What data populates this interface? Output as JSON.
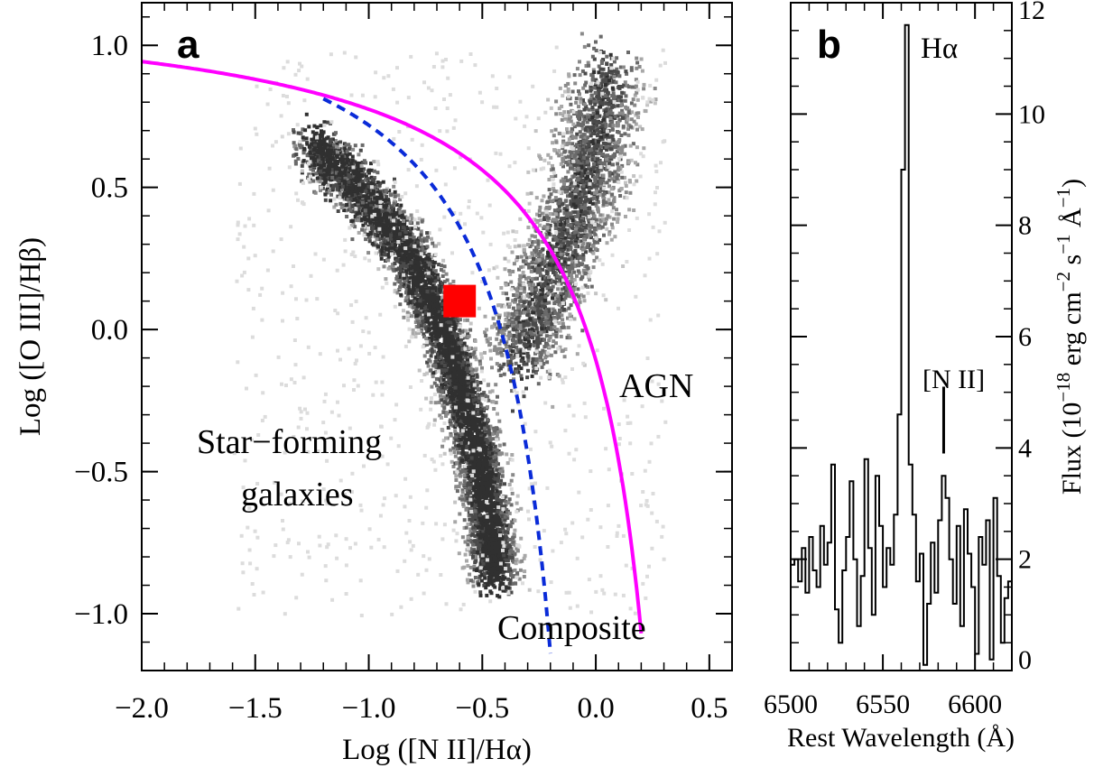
{
  "colors": {
    "kewley_curve": "#ff00ff",
    "kauffmann_curve": "#0a2bd8",
    "target_marker": "#ff0000",
    "density_light": "#cfcfcf",
    "density_dark": "#2a2a2a",
    "axis": "#000000"
  },
  "chart_data": [
    {
      "type": "scatter",
      "panel_label": "a",
      "xlabel": "Log ([N II]/Hα)",
      "ylabel": "Log ([O III]/Hβ)",
      "xlim": [
        -2.0,
        0.6
      ],
      "ylim": [
        -1.2,
        1.15
      ],
      "xticks": [
        -2.0,
        -1.5,
        -1.0,
        -0.5,
        0.0,
        0.5
      ],
      "xtick_labels": [
        "−2.0",
        "−1.5",
        "−1.0",
        "−0.5",
        "0.0",
        "0.5"
      ],
      "yticks": [
        -1.0,
        -0.5,
        0.0,
        0.5,
        1.0
      ],
      "ytick_labels": [
        "−1.0",
        "−0.5",
        "0.0",
        "0.5",
        "1.0"
      ],
      "annotations": [
        "AGN",
        "Star−forming",
        "galaxies",
        "Composite"
      ],
      "curves": [
        {
          "style": "solid",
          "color": "#ff00ff",
          "x_range": [
            -2.0,
            0.2
          ],
          "formula": "y = 0.61/(x - 0.47) + 1.19"
        },
        {
          "style": "dashed",
          "color": "#0a2bd8",
          "x_range": [
            -1.2,
            -0.2
          ],
          "formula": "y = 0.61/(x - 0.05) + 1.3"
        }
      ],
      "marker": {
        "x": -0.6,
        "y": 0.1,
        "shape": "square",
        "color": "#ff0000"
      },
      "density_components": [
        {
          "name": "star-forming branch",
          "points": [
            [
              -1.25,
              0.65
            ],
            [
              -1.05,
              0.5
            ],
            [
              -0.85,
              0.3
            ],
            [
              -0.7,
              0.05
            ],
            [
              -0.6,
              -0.2
            ],
            [
              -0.52,
              -0.45
            ],
            [
              -0.47,
              -0.7
            ],
            [
              -0.45,
              -0.85
            ]
          ]
        },
        {
          "name": "AGN branch",
          "points": [
            [
              -0.35,
              -0.1
            ],
            [
              -0.25,
              0.1
            ],
            [
              -0.15,
              0.3
            ],
            [
              -0.05,
              0.5
            ],
            [
              0.0,
              0.7
            ],
            [
              0.05,
              0.9
            ]
          ]
        }
      ]
    },
    {
      "type": "line",
      "panel_label": "b",
      "xlabel": "Rest Wavelength (Å)",
      "ylabel_text": "Flux (10",
      "ylabel_exp1": "−18",
      "ylabel_mid": " erg cm",
      "ylabel_exp2": "−2",
      "ylabel_mid2": " s",
      "ylabel_exp3": "−1",
      "ylabel_end": " Å",
      "ylabel_exp4": "−1",
      "ylabel_close": ")",
      "xlim": [
        6500,
        6620
      ],
      "ylim": [
        0,
        12
      ],
      "xticks": [
        6500,
        6550,
        6600
      ],
      "xtick_labels": [
        "6500",
        "6550",
        "6600"
      ],
      "yticks": [
        0,
        2,
        4,
        6,
        8,
        10,
        12
      ],
      "ytick_labels": [
        "0",
        "2",
        "4",
        "6",
        "8",
        "10",
        "12"
      ],
      "annotations": [
        "Hα",
        "[N II]"
      ],
      "nii_marker": {
        "x": 6583,
        "y_from": 3.9,
        "y_to": 5.1
      },
      "x": [
        6500,
        6502,
        6504,
        6506,
        6508,
        6510,
        6512,
        6514,
        6516,
        6518,
        6520,
        6522,
        6524,
        6526,
        6528,
        6530,
        6532,
        6534,
        6536,
        6538,
        6540,
        6542,
        6544,
        6546,
        6548,
        6550,
        6552,
        6554,
        6556,
        6558,
        6560,
        6562,
        6564,
        6566,
        6568,
        6570,
        6572,
        6574,
        6576,
        6578,
        6580,
        6582,
        6584,
        6586,
        6588,
        6590,
        6592,
        6594,
        6596,
        6598,
        6600,
        6602,
        6604,
        6606,
        6608,
        6610,
        6612,
        6614,
        6616,
        6618
      ],
      "y": [
        1.9,
        2.0,
        1.6,
        2.2,
        1.4,
        2.4,
        1.8,
        1.5,
        2.6,
        1.9,
        2.3,
        3.7,
        1.1,
        0.5,
        1.8,
        2.4,
        3.4,
        2.0,
        0.8,
        1.7,
        3.8,
        2.2,
        1.0,
        3.5,
        2.6,
        1.5,
        2.2,
        1.9,
        2.8,
        4.6,
        9.0,
        11.6,
        3.7,
        2.8,
        1.6,
        2.1,
        0.1,
        1.2,
        2.3,
        1.4,
        2.7,
        3.5,
        3.1,
        2.0,
        1.2,
        2.6,
        0.8,
        2.9,
        2.1,
        1.5,
        0.3,
        2.4,
        1.9,
        2.7,
        0.2,
        3.1,
        1.7,
        0.5,
        1.3,
        1.6
      ]
    }
  ]
}
